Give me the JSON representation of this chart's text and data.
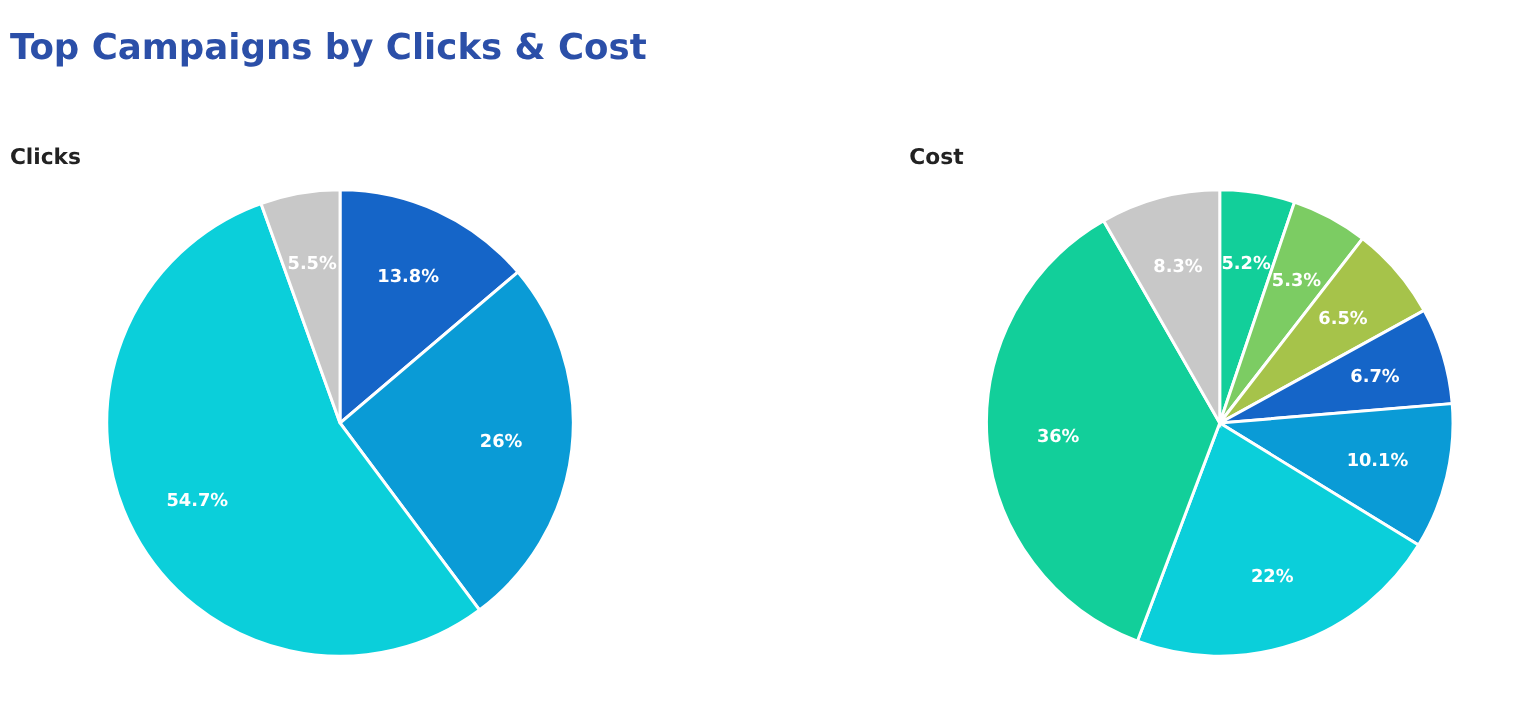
{
  "chart_data": [
    {
      "type": "other",
      "title": "Top Campaigns by Clicks & Cost"
    },
    {
      "type": "pie",
      "title": "Clicks",
      "categories": [
        null,
        null,
        null,
        null
      ],
      "values": [
        13.8,
        26,
        54.7,
        5.5
      ],
      "value_labels": [
        "13.8%",
        "26%",
        "54.7%",
        "5.5%"
      ],
      "colors": [
        "#1565c8",
        "#0a9bd6",
        "#0bcfda",
        "#c8c8c8"
      ]
    },
    {
      "type": "pie",
      "title": "Cost",
      "categories": [
        null,
        null,
        null,
        null,
        null,
        null,
        null,
        null
      ],
      "values": [
        5.2,
        5.3,
        6.5,
        6.7,
        10.1,
        22,
        36,
        8.3
      ],
      "value_labels": [
        "5.2%",
        "5.3%",
        "6.5%",
        "6.7%",
        "10.1%",
        "22%",
        "36%",
        "8.3%"
      ],
      "colors": [
        "#12cf9a",
        "#7ccc63",
        "#a6c34a",
        "#1565c8",
        "#0a9bd6",
        "#0bcfda",
        "#12cf9a",
        "#c8c8c8"
      ]
    }
  ]
}
